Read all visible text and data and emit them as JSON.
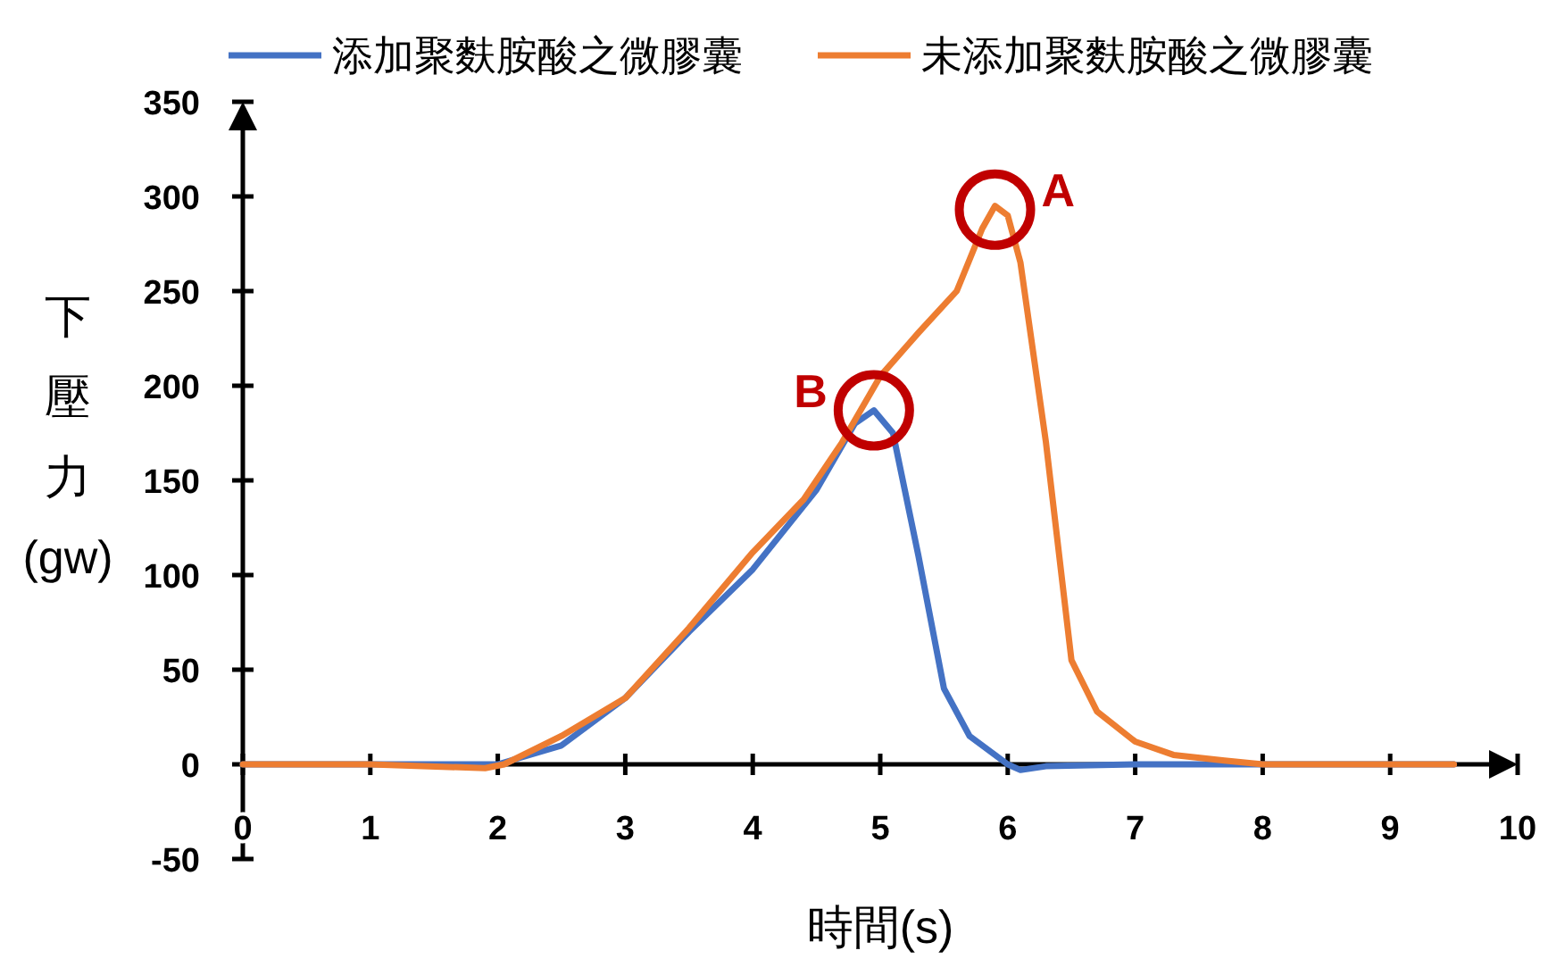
{
  "chart_data": {
    "type": "line",
    "xlabel": "時間(s)",
    "ylabel": "下壓力(gw)",
    "xlim": [
      0,
      10
    ],
    "ylim": [
      -50,
      350
    ],
    "xticks": [
      0,
      1,
      2,
      3,
      4,
      5,
      6,
      7,
      8,
      9,
      10
    ],
    "yticks": [
      -50,
      0,
      50,
      100,
      150,
      200,
      250,
      300,
      350
    ],
    "grid": false,
    "legend": "top",
    "marker": "none",
    "line_style": "solid",
    "series": [
      {
        "name": "添加聚麩胺酸之微膠囊",
        "color": "#4472c4",
        "x": [
          0,
          1,
          2,
          2.5,
          3,
          3.5,
          4,
          4.5,
          4.8,
          4.95,
          5.1,
          5.3,
          5.5,
          5.7,
          6,
          6.1,
          6.3,
          7,
          8,
          9,
          9.5
        ],
        "values": [
          0,
          0,
          0,
          10,
          35,
          70,
          103,
          145,
          180,
          187,
          175,
          110,
          40,
          15,
          0,
          -3,
          -1,
          0,
          0,
          0,
          0
        ]
      },
      {
        "name": "未添加聚麩胺酸之微膠囊",
        "color": "#ed7d31",
        "x": [
          0,
          1,
          1.9,
          2.05,
          2.5,
          3,
          3.5,
          4,
          4.4,
          4.7,
          5,
          5.3,
          5.6,
          5.8,
          5.9,
          6,
          6.1,
          6.3,
          6.5,
          6.7,
          7,
          7.3,
          7.7,
          8,
          9,
          9.5
        ],
        "values": [
          0,
          0,
          -2,
          0,
          15,
          35,
          72,
          112,
          140,
          170,
          205,
          228,
          250,
          283,
          295,
          290,
          265,
          170,
          55,
          28,
          12,
          5,
          2,
          0,
          0,
          0
        ]
      }
    ],
    "annotations": [
      {
        "text": "A",
        "x": 5.9,
        "y": 293
      },
      {
        "text": "B",
        "x": 4.95,
        "y": 187
      }
    ]
  }
}
